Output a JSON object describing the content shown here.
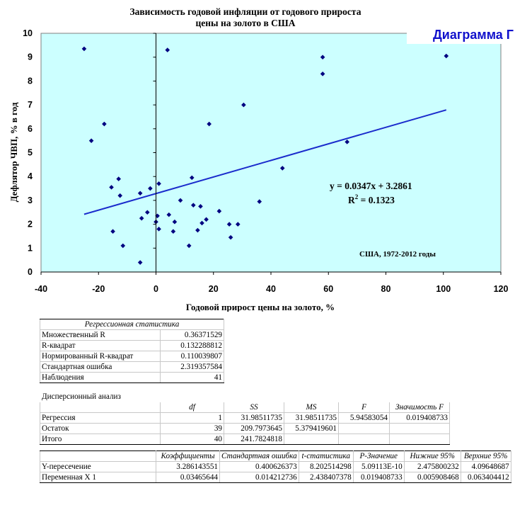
{
  "chart_data": {
    "type": "scatter",
    "title": "Зависимость годовой инфляции от годового прироста цены на золото в США",
    "title_lines": [
      "Зависимость годовой инфляции от годового прироста",
      "цены на золото в США"
    ],
    "xlabel": "Годовой прирост цены на золото, %",
    "ylabel": "Дефлятор ЧВП, % в год",
    "xlim": [
      -40,
      120
    ],
    "ylim": [
      0,
      10
    ],
    "x_ticks": [
      -40,
      -20,
      0,
      20,
      40,
      60,
      80,
      100,
      120
    ],
    "y_ticks": [
      0,
      1,
      2,
      3,
      4,
      5,
      6,
      7,
      8,
      9,
      10
    ],
    "background_color": "#ccffff",
    "point_color": "#000080",
    "trendline_color": "#1a2bcc",
    "trendline": {
      "slope": 0.0347,
      "intercept": 3.2861,
      "x_range": [
        -25,
        101
      ]
    },
    "equation": "y = 0.0347x + 3.2861",
    "r2_label": "R",
    "r2_sup": "2",
    "r2_value": " = 0.1323",
    "annotation": "США, 1972-2012 годы",
    "badge": "Диаграмма Г",
    "points": [
      [
        -25,
        9.35
      ],
      [
        -22.5,
        5.5
      ],
      [
        -18,
        6.2
      ],
      [
        -15.5,
        3.55
      ],
      [
        -15,
        1.7
      ],
      [
        -13,
        3.9
      ],
      [
        -12.5,
        3.2
      ],
      [
        -11.5,
        1.1
      ],
      [
        -5.5,
        3.3
      ],
      [
        -5.5,
        0.4
      ],
      [
        -5,
        2.25
      ],
      [
        -3,
        2.5
      ],
      [
        -2,
        3.5
      ],
      [
        0,
        2.1
      ],
      [
        0.5,
        2.35
      ],
      [
        1,
        3.7
      ],
      [
        1,
        1.8
      ],
      [
        4,
        9.3
      ],
      [
        4.5,
        2.4
      ],
      [
        6,
        1.7
      ],
      [
        6.5,
        2.1
      ],
      [
        8.5,
        3.0
      ],
      [
        11.5,
        1.1
      ],
      [
        12.5,
        3.95
      ],
      [
        13,
        2.8
      ],
      [
        14.5,
        1.75
      ],
      [
        15.5,
        2.75
      ],
      [
        16,
        2.05
      ],
      [
        17.5,
        2.2
      ],
      [
        18.5,
        6.2
      ],
      [
        22,
        2.55
      ],
      [
        25.5,
        2.0
      ],
      [
        26,
        1.45
      ],
      [
        28.5,
        2.0
      ],
      [
        30.5,
        7.0
      ],
      [
        36,
        2.95
      ],
      [
        44,
        4.35
      ],
      [
        58,
        9.0
      ],
      [
        58,
        8.3
      ],
      [
        66.5,
        5.45
      ],
      [
        101,
        9.05
      ]
    ]
  },
  "regression": {
    "stats_header": "Регрессионная статистика",
    "stats": [
      {
        "label": "Множественный R",
        "value": "0.36371529"
      },
      {
        "label": "R-квадрат",
        "value": "0.132288812"
      },
      {
        "label": "Нормированный R-квадрат",
        "value": "0.110039807"
      },
      {
        "label": "Стандартная ошибка",
        "value": "2.319357584"
      },
      {
        "label": "Наблюдения",
        "value": "41"
      }
    ],
    "anova_title": "Дисперсионный анализ",
    "anova_headers": [
      "df",
      "SS",
      "MS",
      "F",
      "Значимость F"
    ],
    "anova": [
      {
        "label": "Регрессия",
        "df": "1",
        "ss": "31.98511735",
        "ms": "31.98511735",
        "f": "5.94583054",
        "sig": "0.019408733"
      },
      {
        "label": "Остаток",
        "df": "39",
        "ss": "209.7973645",
        "ms": "5.379419601",
        "f": "",
        "sig": ""
      },
      {
        "label": "Итого",
        "df": "40",
        "ss": "241.7824818",
        "ms": "",
        "f": "",
        "sig": ""
      }
    ],
    "coef_headers": [
      "Коэффициенты",
      "Стандартная ошибка",
      "t-статистика",
      "P-Значение",
      "Нижние 95%",
      "Верхние 95%"
    ],
    "coef": [
      {
        "label": "Y-пересечение",
        "c": "3.286143551",
        "se": "0.400626373",
        "t": "8.202514298",
        "p": "5.09113E-10",
        "lo": "2.475800232",
        "hi": "4.09648687"
      },
      {
        "label": "Переменная X 1",
        "c": "0.03465644",
        "se": "0.014212736",
        "t": "2.438407378",
        "p": "0.019408733",
        "lo": "0.005908468",
        "hi": "0.063404412"
      }
    ]
  }
}
